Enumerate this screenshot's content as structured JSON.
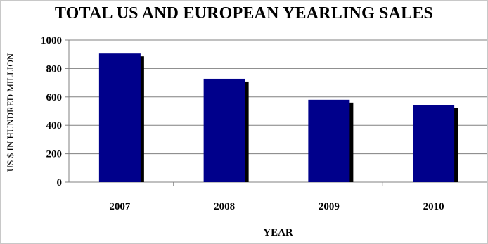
{
  "chart_data": {
    "type": "bar",
    "title": "TOTAL US AND EUROPEAN YEARLING SALES",
    "xlabel": "YEAR",
    "ylabel": "US $ IN HUNDRED MILLION",
    "categories": [
      "2007",
      "2008",
      "2009",
      "2010"
    ],
    "values": [
      905,
      728,
      580,
      540
    ],
    "ylim": [
      0,
      1000
    ],
    "yticks": [
      "0",
      "200",
      "400",
      "600",
      "800",
      "1000"
    ],
    "grid": true,
    "legend": "none",
    "colors": {
      "bar": "#00008b",
      "bar_shadow": "#000000",
      "grid": "#808080",
      "axis": "#808080"
    }
  }
}
